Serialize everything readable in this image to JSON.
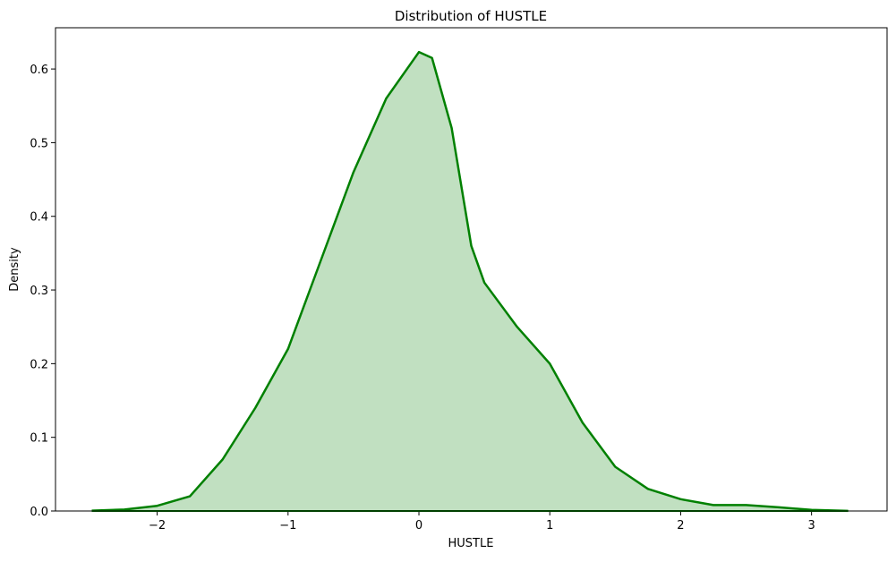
{
  "chart_data": {
    "type": "kde",
    "title": "Distribution of HUSTLE",
    "xlabel": "HUSTLE",
    "ylabel": "Density",
    "x": [
      -2.5,
      -2.25,
      -2.0,
      -1.75,
      -1.5,
      -1.25,
      -1.0,
      -0.75,
      -0.5,
      -0.25,
      0,
      0.1,
      0.25,
      0.4,
      0.5,
      0.75,
      1.0,
      1.25,
      1.5,
      1.75,
      2.0,
      2.25,
      2.5,
      2.75,
      3.0,
      3.28
    ],
    "values": [
      0.0005,
      0.002,
      0.007,
      0.02,
      0.07,
      0.14,
      0.22,
      0.34,
      0.46,
      0.56,
      0.623,
      0.615,
      0.52,
      0.36,
      0.31,
      0.25,
      0.2,
      0.12,
      0.06,
      0.03,
      0.016,
      0.008,
      0.008,
      0.005,
      0.0015,
      0.0002
    ],
    "color": "#008000",
    "fill": "#c1e0c1",
    "xlim": [
      -2.777,
      3.577
    ],
    "ylim": [
      0,
      0.656
    ],
    "xticks": [
      {
        "value": -2,
        "label": "−2"
      },
      {
        "value": -1,
        "label": "−1"
      },
      0,
      1,
      2,
      3
    ],
    "yticks": [
      {
        "value": 0,
        "label": "0.0"
      },
      0.1,
      0.2,
      0.3,
      0.4,
      0.5,
      0.6
    ]
  }
}
